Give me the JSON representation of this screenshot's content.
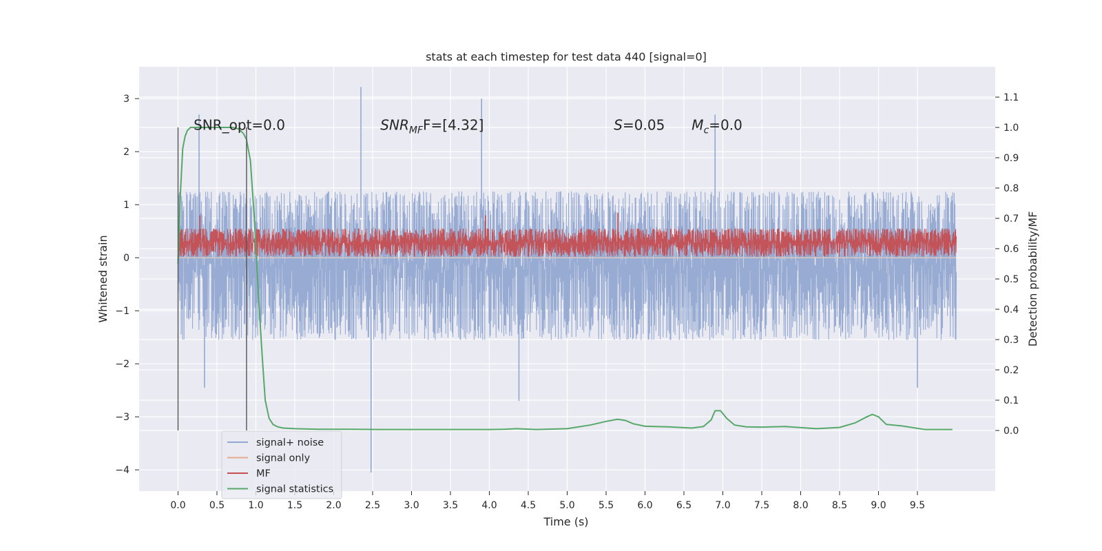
{
  "chart_data": {
    "type": "line",
    "title": "stats at each timestep for test data 440 [signal=0]",
    "xlabel": "Time (s)",
    "ylabel": "Whitened strain",
    "y2label": "Detection probability/MF",
    "xlim": [
      -0.5,
      10.5
    ],
    "ylim": [
      -4.4,
      3.6
    ],
    "y2lim": [
      -0.2,
      1.2
    ],
    "grid": true,
    "legend_position": "bottom-left",
    "x_ticks": [
      "0.0",
      "0.5",
      "1.0",
      "1.5",
      "2.0",
      "2.5",
      "3.0",
      "3.5",
      "4.0",
      "4.5",
      "5.0",
      "5.5",
      "6.0",
      "6.5",
      "7.0",
      "7.5",
      "8.0",
      "8.5",
      "9.0",
      "9.5"
    ],
    "y_ticks": [
      "−4",
      "−3",
      "−2",
      "−1",
      "0",
      "1",
      "2",
      "3"
    ],
    "y2_ticks": [
      "0.0",
      "0.1",
      "0.2",
      "0.3",
      "0.4",
      "0.5",
      "0.6",
      "0.7",
      "0.8",
      "0.9",
      "1.0",
      "1.1"
    ],
    "annotations": [
      {
        "id": "snr_opt",
        "text": "SNR_opt=0.0",
        "x": 0.2,
        "y": 2.5
      },
      {
        "id": "snr_mf",
        "base": "SNR",
        "sub": "MF",
        "rest": "F=[4.32]",
        "x": 2.6,
        "y": 2.5
      },
      {
        "id": "s",
        "base": "S",
        "rest": "=0.05",
        "x": 5.6,
        "y": 2.5
      },
      {
        "id": "mc",
        "base": "M",
        "sub": "c",
        "rest": "=0.0",
        "x": 6.6,
        "y": 2.5
      }
    ],
    "vertical_lines": [
      0.0,
      0.88
    ],
    "series": [
      {
        "name": "signal+ noise",
        "color": "#92a8d1",
        "kind": "noise",
        "x_range": [
          0.0,
          10.0
        ],
        "band": [
          -1.55,
          1.25
        ],
        "extremes": [
          [
            0.27,
            2.7
          ],
          [
            0.34,
            -2.45
          ],
          [
            2.35,
            3.22
          ],
          [
            2.48,
            -4.05
          ],
          [
            3.9,
            3.0
          ],
          [
            6.9,
            2.7
          ],
          [
            4.38,
            -2.7
          ],
          [
            9.5,
            -2.45
          ]
        ]
      },
      {
        "name": "signal only",
        "color": "#e8a98c",
        "values": []
      },
      {
        "name": "MF",
        "color": "#c44e52",
        "kind": "noise",
        "x_range": [
          0.0,
          10.0
        ],
        "band": [
          0.02,
          0.55
        ],
        "extremes": [
          [
            0.28,
            0.8
          ],
          [
            3.95,
            0.8
          ],
          [
            5.65,
            0.85
          ]
        ]
      },
      {
        "name": "signal statistics",
        "color": "#55a868",
        "x": [
          0.0,
          0.03,
          0.06,
          0.09,
          0.12,
          0.16,
          0.2,
          0.3,
          0.4,
          0.5,
          0.6,
          0.7,
          0.78,
          0.84,
          0.88,
          0.93,
          0.98,
          1.03,
          1.08,
          1.12,
          1.17,
          1.22,
          1.28,
          1.35,
          1.5,
          1.8,
          2.2,
          2.6,
          3.0,
          3.5,
          4.0,
          4.2,
          4.35,
          4.6,
          5.0,
          5.3,
          5.5,
          5.65,
          5.75,
          5.85,
          6.0,
          6.3,
          6.6,
          6.75,
          6.85,
          6.9,
          6.97,
          7.05,
          7.15,
          7.3,
          7.5,
          7.8,
          8.2,
          8.5,
          8.7,
          8.85,
          8.92,
          9.0,
          9.1,
          9.3,
          9.6,
          9.95
        ],
        "values": [
          0.55,
          0.78,
          0.93,
          0.97,
          0.99,
          1.0,
          1.0,
          1.0,
          1.0,
          1.0,
          1.0,
          1.0,
          0.995,
          0.98,
          0.96,
          0.89,
          0.7,
          0.46,
          0.25,
          0.1,
          0.04,
          0.02,
          0.012,
          0.008,
          0.006,
          0.004,
          0.004,
          0.003,
          0.003,
          0.003,
          0.003,
          0.004,
          0.006,
          0.003,
          0.006,
          0.018,
          0.03,
          0.037,
          0.033,
          0.022,
          0.014,
          0.012,
          0.008,
          0.013,
          0.035,
          0.065,
          0.065,
          0.04,
          0.018,
          0.012,
          0.011,
          0.013,
          0.006,
          0.01,
          0.025,
          0.045,
          0.053,
          0.045,
          0.02,
          0.015,
          0.003,
          0.003
        ]
      }
    ]
  }
}
